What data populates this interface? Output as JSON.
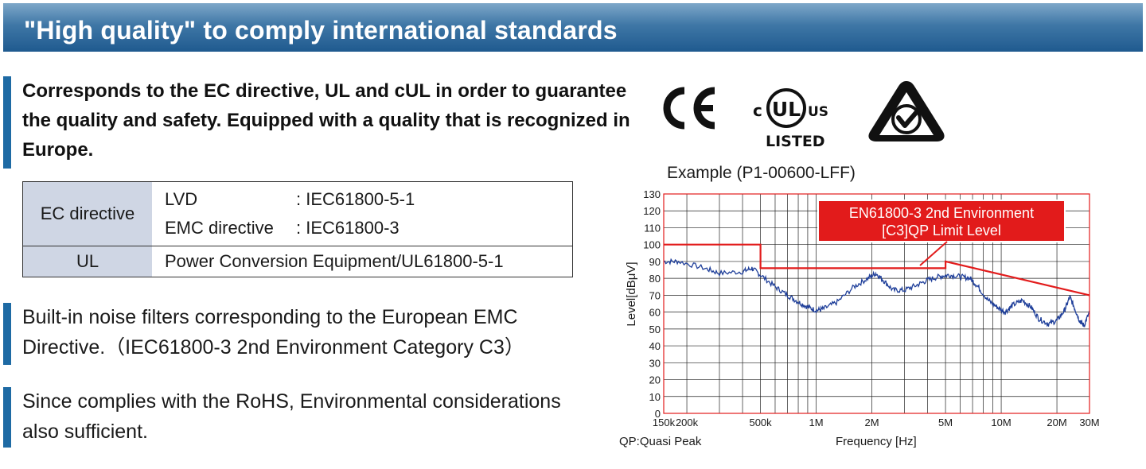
{
  "banner": {
    "title": "\"High quality\" to comply international standards"
  },
  "intro": {
    "text": "Corresponds to the EC directive, UL and cUL in order to guarantee the quality and safety. Equipped with a quality that is recognized in Europe."
  },
  "standards_table": {
    "ec": {
      "label": "EC directive",
      "rows": [
        {
          "name": "LVD",
          "value": ": IEC61800-5-1"
        },
        {
          "name": "EMC directive",
          "value": ": IEC61800-3"
        }
      ]
    },
    "ul": {
      "label": "UL",
      "value": "Power Conversion Equipment/UL61800-5-1"
    }
  },
  "features": {
    "noise": {
      "line1": "Built-in noise filters corresponding to the European EMC",
      "line2": "Directive.（IEC61800-3 2nd Environment Category C3）"
    },
    "rohs": {
      "line1": "Since complies with the RoHS, Environmental considerations",
      "line2": "also sufficient."
    }
  },
  "logos": {
    "ce": {
      "text": "CE",
      "icon": "ce-mark-icon"
    },
    "ul": {
      "prefix": "c",
      "mark": "UL",
      "suffix": "US",
      "listed": "LISTED",
      "icon": "ul-listed-icon"
    },
    "rcm": {
      "icon": "rcm-mark-icon"
    }
  },
  "chart_data": {
    "type": "line",
    "title": "Example (P1-00600-LFF)",
    "xlabel": "Frequency  [Hz]",
    "ylabel": "Level[dBμV]",
    "xscale": "log",
    "xlim": [
      150000,
      30000000
    ],
    "ylim": [
      0,
      130
    ],
    "grid": true,
    "x_ticks": [
      {
        "value": 150000,
        "label": "150k"
      },
      {
        "value": 200000,
        "label": "200k"
      },
      {
        "value": 500000,
        "label": "500k"
      },
      {
        "value": 1000000,
        "label": "1M"
      },
      {
        "value": 2000000,
        "label": "2M"
      },
      {
        "value": 5000000,
        "label": "5M"
      },
      {
        "value": 10000000,
        "label": "10M"
      },
      {
        "value": 20000000,
        "label": "20M"
      },
      {
        "value": 30000000,
        "label": "30M"
      }
    ],
    "y_ticks": [
      0,
      10,
      20,
      30,
      40,
      50,
      60,
      70,
      80,
      90,
      100,
      110,
      120,
      130
    ],
    "limit_line": {
      "label_line1": "EN61800-3 2nd Environment",
      "label_line2": "[C3]QP Limit Level",
      "color": "#e21b1b",
      "points": [
        [
          150000,
          100
        ],
        [
          500000,
          100
        ],
        [
          500000,
          86
        ],
        [
          5000000,
          86
        ],
        [
          5000000,
          90
        ],
        [
          30000000,
          70
        ]
      ]
    },
    "measured": {
      "color": "#1f3f9a",
      "points": [
        [
          150000,
          90
        ],
        [
          180000,
          90
        ],
        [
          250000,
          86
        ],
        [
          300000,
          83
        ],
        [
          400000,
          84
        ],
        [
          450000,
          86
        ],
        [
          500000,
          82
        ],
        [
          600000,
          75
        ],
        [
          700000,
          70
        ],
        [
          800000,
          66
        ],
        [
          900000,
          63
        ],
        [
          1000000,
          61
        ],
        [
          1100000,
          62
        ],
        [
          1300000,
          66
        ],
        [
          1600000,
          75
        ],
        [
          1900000,
          80
        ],
        [
          2100000,
          83
        ],
        [
          2300000,
          79
        ],
        [
          2600000,
          73
        ],
        [
          3000000,
          73
        ],
        [
          3500000,
          76
        ],
        [
          4000000,
          79
        ],
        [
          4600000,
          81
        ],
        [
          5200000,
          82
        ],
        [
          6000000,
          81
        ],
        [
          6800000,
          80
        ],
        [
          7500000,
          75
        ],
        [
          8500000,
          67
        ],
        [
          9500000,
          63
        ],
        [
          10500000,
          60
        ],
        [
          11500000,
          64
        ],
        [
          13000000,
          67
        ],
        [
          14500000,
          63
        ],
        [
          16000000,
          56
        ],
        [
          18000000,
          53
        ],
        [
          20000000,
          55
        ],
        [
          22000000,
          61
        ],
        [
          23500000,
          69
        ],
        [
          25000000,
          62
        ],
        [
          26500000,
          55
        ],
        [
          28000000,
          52
        ],
        [
          30000000,
          60
        ]
      ]
    },
    "notes": {
      "left": "QP:Quasi Peak"
    }
  }
}
